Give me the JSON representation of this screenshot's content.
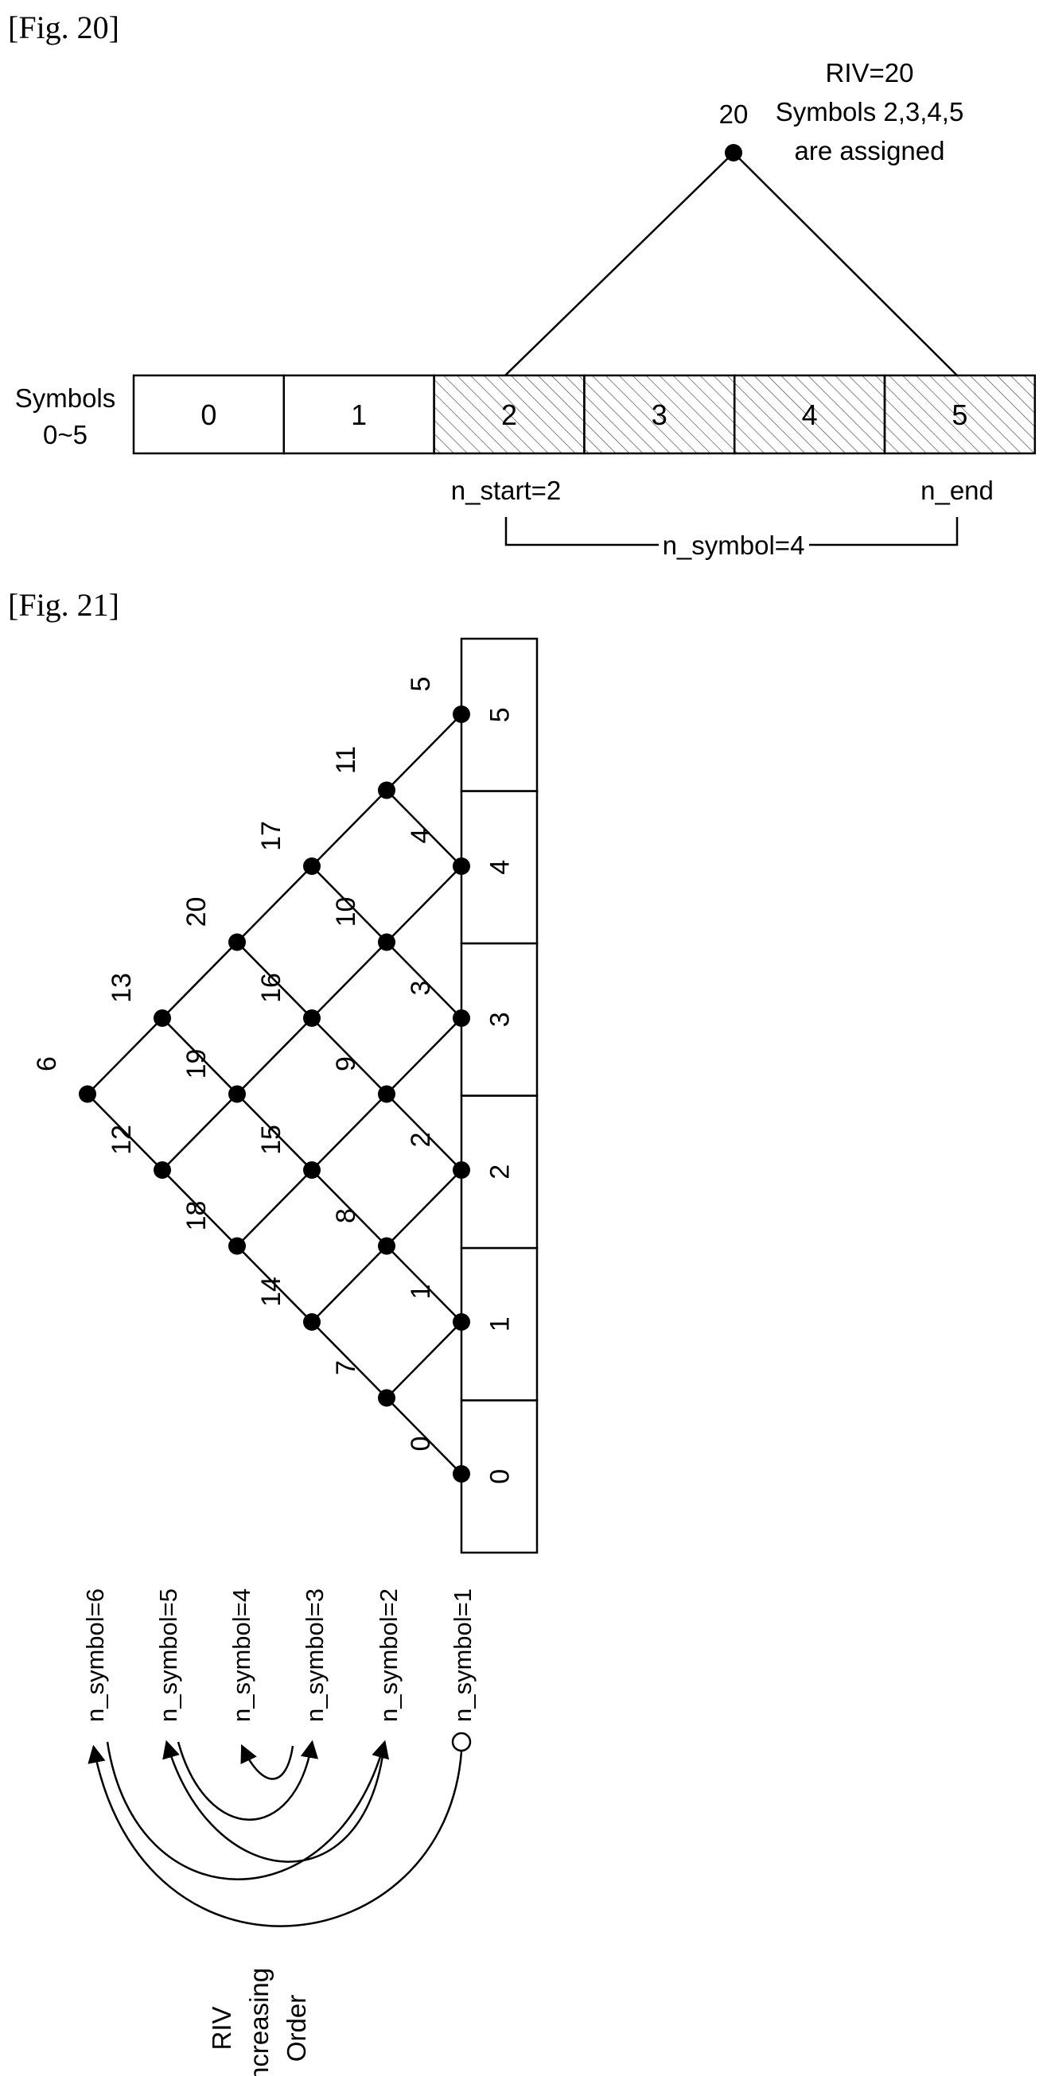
{
  "fig20": {
    "caption": "[Fig. 20]",
    "left_label_line1": "Symbols",
    "left_label_line2": "0~5",
    "symbols": [
      "0",
      "1",
      "2",
      "3",
      "4",
      "5"
    ],
    "assigned_symbols": [
      2,
      3,
      4,
      5
    ],
    "apex_label": "20",
    "note_line1": "RIV=20",
    "note_line2": "Symbols 2,3,4,5",
    "note_line3": "are assigned",
    "start_label": "n_start=2",
    "end_label": "n_end",
    "span_label": "n_symbol=4"
  },
  "fig21": {
    "caption": "[Fig. 21]",
    "symbols": [
      "0",
      "1",
      "2",
      "3",
      "4",
      "5"
    ],
    "lattice_nodes": [
      {
        "start": 0,
        "len": 1,
        "riv": "0"
      },
      {
        "start": 1,
        "len": 1,
        "riv": "1"
      },
      {
        "start": 2,
        "len": 1,
        "riv": "2"
      },
      {
        "start": 3,
        "len": 1,
        "riv": "3"
      },
      {
        "start": 4,
        "len": 1,
        "riv": "4"
      },
      {
        "start": 5,
        "len": 1,
        "riv": "5"
      },
      {
        "start": 0,
        "len": 2,
        "riv": "7"
      },
      {
        "start": 1,
        "len": 2,
        "riv": "8"
      },
      {
        "start": 2,
        "len": 2,
        "riv": "9"
      },
      {
        "start": 3,
        "len": 2,
        "riv": "10"
      },
      {
        "start": 4,
        "len": 2,
        "riv": "11"
      },
      {
        "start": 0,
        "len": 3,
        "riv": "14"
      },
      {
        "start": 1,
        "len": 3,
        "riv": "15"
      },
      {
        "start": 2,
        "len": 3,
        "riv": "16"
      },
      {
        "start": 3,
        "len": 3,
        "riv": "17"
      },
      {
        "start": 0,
        "len": 4,
        "riv": "18"
      },
      {
        "start": 1,
        "len": 4,
        "riv": "19"
      },
      {
        "start": 2,
        "len": 4,
        "riv": "20"
      },
      {
        "start": 0,
        "len": 5,
        "riv": "12"
      },
      {
        "start": 1,
        "len": 5,
        "riv": "13"
      },
      {
        "start": 0,
        "len": 6,
        "riv": "6"
      }
    ],
    "n_symbol_labels": [
      "n_symbol=6",
      "n_symbol=5",
      "n_symbol=4",
      "n_symbol=3",
      "n_symbol=2",
      "n_symbol=1"
    ],
    "order_label_lines": [
      "RIV",
      "Increasing",
      "Order"
    ]
  }
}
